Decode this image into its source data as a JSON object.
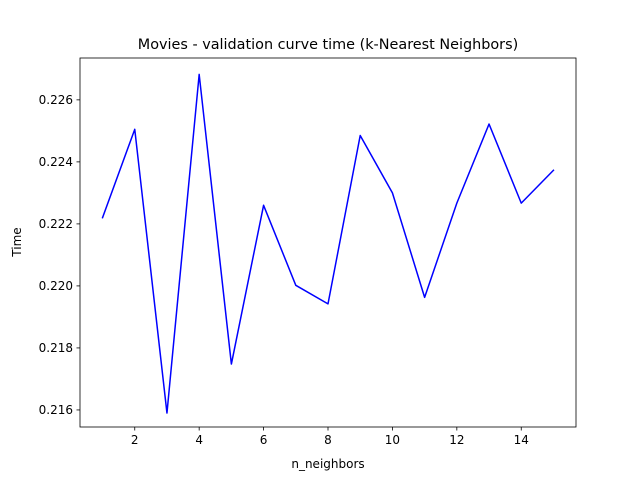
{
  "chart_data": {
    "type": "line",
    "title": "Movies - validation curve time (k-Nearest Neighbors)",
    "xlabel": "n_neighbors",
    "ylabel": "Time",
    "xlim": [
      0.3,
      15.7
    ],
    "ylim": [
      0.21545,
      0.22735
    ],
    "xticks": [
      2,
      4,
      6,
      8,
      10,
      12,
      14
    ],
    "yticks": [
      0.216,
      0.218,
      0.22,
      0.222,
      0.224,
      0.226
    ],
    "ytick_labels": [
      "0.216",
      "0.218",
      "0.220",
      "0.222",
      "0.224",
      "0.226"
    ],
    "grid": false,
    "series": [
      {
        "color": "#0000ff",
        "x": [
          1,
          2,
          3,
          4,
          5,
          6,
          7,
          8,
          9,
          10,
          11,
          12,
          13,
          14,
          15
        ],
        "y": [
          0.2222,
          0.22505,
          0.2159,
          0.22682,
          0.21748,
          0.2226,
          0.22002,
          0.21942,
          0.22485,
          0.223,
          0.21963,
          0.22267,
          0.22522,
          0.22267,
          0.22373
        ]
      }
    ]
  }
}
